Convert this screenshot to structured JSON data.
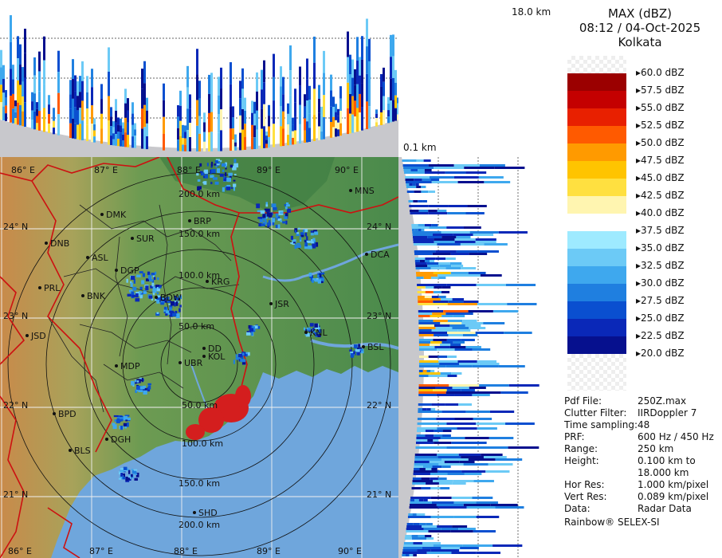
{
  "legend": {
    "title": "MAX (dBZ)",
    "datetime": "08:12 / 04-Oct-2025",
    "station": "Kolkata",
    "scale": [
      {
        "label": "60.0 dBZ",
        "color": ""
      },
      {
        "label": "57.5 dBZ",
        "color": "#9b0000"
      },
      {
        "label": "55.0 dBZ",
        "color": "#c40000"
      },
      {
        "label": "52.5 dBZ",
        "color": "#e82000"
      },
      {
        "label": "50.0 dBZ",
        "color": "#ff5a00"
      },
      {
        "label": "47.5 dBZ",
        "color": "#ff9a00"
      },
      {
        "label": "45.0 dBZ",
        "color": "#ffc400"
      },
      {
        "label": "42.5 dBZ",
        "color": "#ffe040"
      },
      {
        "label": "40.0 dBZ",
        "color": "#fff5b0"
      },
      {
        "label": "37.5 dBZ",
        "color": "#ffffff"
      },
      {
        "label": "35.0 dBZ",
        "color": "#9eeaff"
      },
      {
        "label": "32.5 dBZ",
        "color": "#6ccaf6"
      },
      {
        "label": "30.0 dBZ",
        "color": "#3ea8ee"
      },
      {
        "label": "27.5 dBZ",
        "color": "#1f7fe0"
      },
      {
        "label": "25.0 dBZ",
        "color": "#0a4fd0"
      },
      {
        "label": "22.5 dBZ",
        "color": "#0a28b8"
      },
      {
        "label": "20.0 dBZ",
        "color": "#06108e"
      }
    ]
  },
  "profile_labels": {
    "top": "18.0 km",
    "bottom": "0.1 km"
  },
  "info": [
    {
      "key": "Pdf File:",
      "value": "250Z.max"
    },
    {
      "key": "Clutter Filter:",
      "value": "IIRDoppler 7"
    },
    {
      "key": "Time sampling:",
      "value": "48"
    },
    {
      "key": "PRF:",
      "value": "600 Hz / 450 Hz"
    },
    {
      "key": "Range:",
      "value": "250 km"
    },
    {
      "key": "Height:",
      "value": "0.100 km to"
    },
    {
      "key": "",
      "value": "18.000 km"
    },
    {
      "key": "Hor Res:",
      "value": "1.000 km/pixel"
    },
    {
      "key": "Vert Res:",
      "value": "0.089 km/pixel"
    },
    {
      "key": "Data:",
      "value": "Radar Data"
    }
  ],
  "footer": "Rainbow® SELEX-SI",
  "map": {
    "lon_labels": [
      "86° E",
      "87° E",
      "88° E",
      "89° E",
      "90° E"
    ],
    "lat_labels": [
      "24° N",
      "23° N",
      "22° N",
      "21° N"
    ],
    "rings": [
      "50.0 km",
      "100.0 km",
      "150.0 km",
      "200.0 km"
    ],
    "rings_south": [
      "50.0 km",
      "100.0 km",
      "150.0 km",
      "200.0 km"
    ],
    "places": [
      "MNS",
      "DMK",
      "BRP",
      "SUR",
      "DNB",
      "ASL",
      "DCA",
      "DGP",
      "KRG",
      "PRL",
      "BNK",
      "BDW",
      "JSR",
      "KNL",
      "JSD",
      "DD",
      "BSL",
      "MDP",
      "UBR",
      "KOL",
      "BPD",
      "DGH",
      "BLS",
      "SHD"
    ],
    "colors": {
      "land": "#4e8f4e",
      "sea": "#6fa6dc",
      "border": "#cc1111"
    }
  }
}
